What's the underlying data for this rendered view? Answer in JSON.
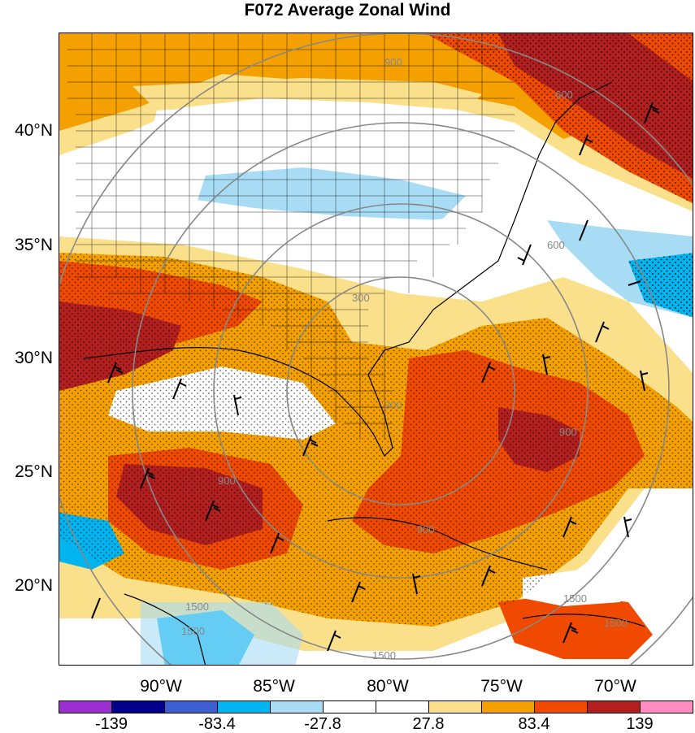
{
  "title": "F072 Average Zonal Wind",
  "lat_labels": [
    "40°N",
    "35°N",
    "30°N",
    "25°N",
    "20°N"
  ],
  "lon_labels": [
    "90°W",
    "85°W",
    "80°W",
    "75°W",
    "70°W"
  ],
  "colorbar": {
    "labels": [
      "-139",
      "-83.4",
      "-27.8",
      "27.8",
      "83.4",
      "139"
    ],
    "colors": [
      "#9b30d0",
      "#00008b",
      "#3d5fd0",
      "#00b4f0",
      "#a8dcf5",
      "#ffffff",
      "#ffffff",
      "#fae08a",
      "#f4a000",
      "#ef4a00",
      "#b21f1f",
      "#ff8cc0"
    ]
  },
  "contour_labels": [
    "900",
    "1500",
    "1500",
    "1500",
    "900",
    "900",
    "600",
    "600",
    "900",
    "300",
    "300",
    "1500",
    "1500"
  ]
}
